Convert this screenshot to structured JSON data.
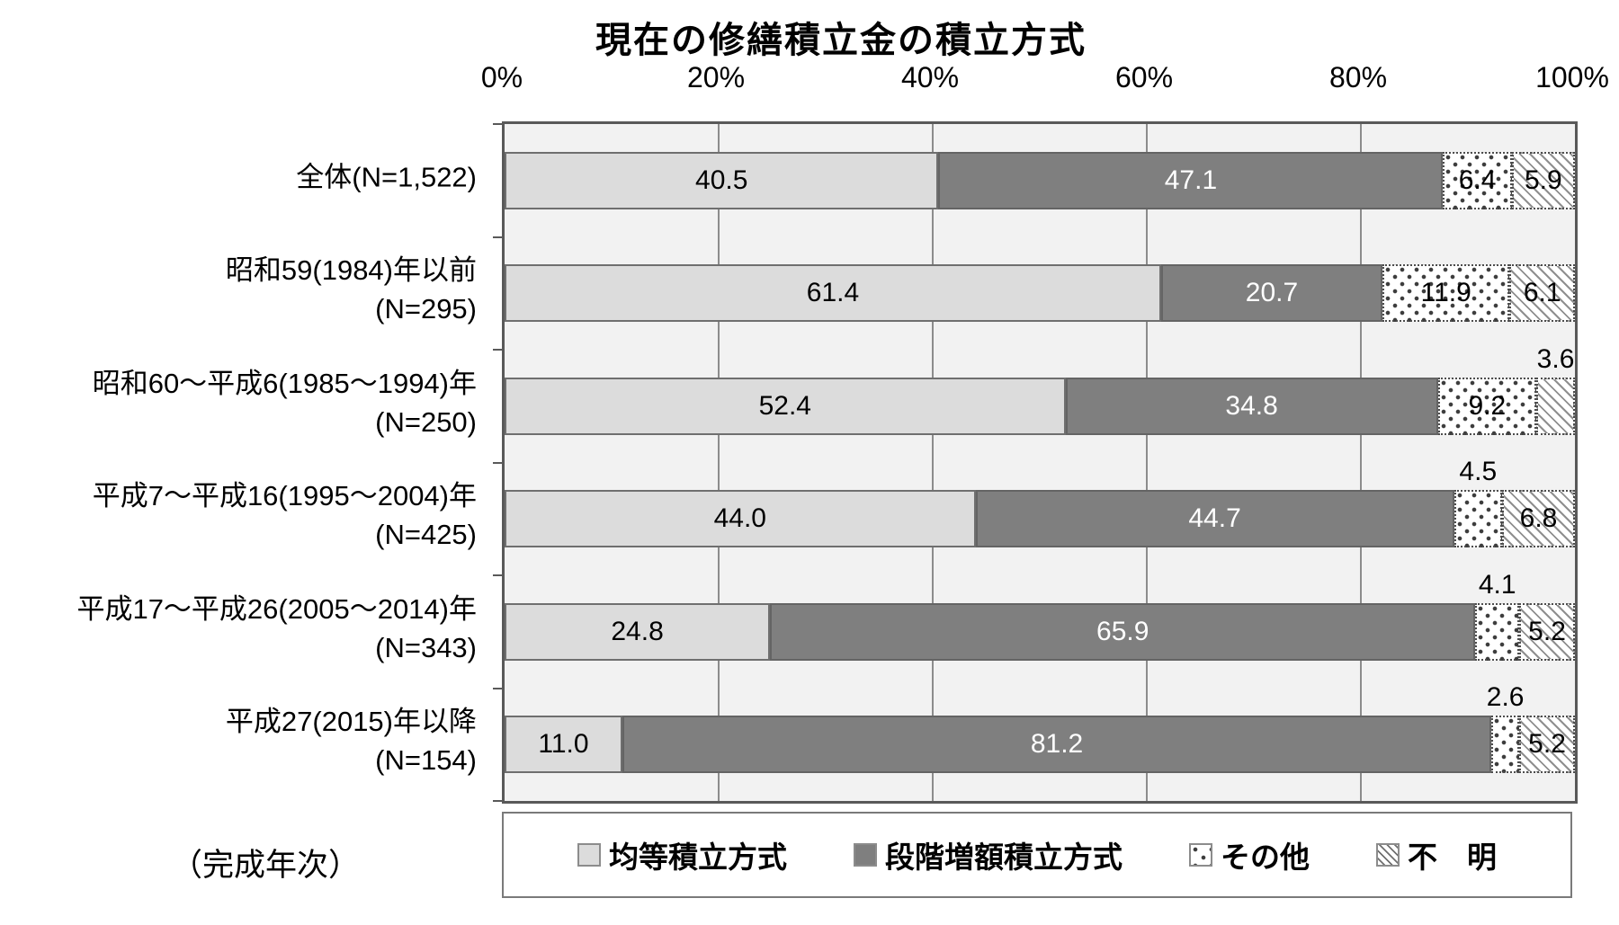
{
  "chart_data": {
    "type": "bar",
    "orientation": "horizontal",
    "stacked": true,
    "title": "現在の修繕積立金の積立方式",
    "footnote": "（完成年次）",
    "x_axis": {
      "range": [
        0,
        100
      ],
      "ticks": [
        "0%",
        "20%",
        "40%",
        "60%",
        "80%",
        "100%"
      ],
      "grid": true
    },
    "categories": [
      {
        "line1": "全体(N=1,522)",
        "line2": ""
      },
      {
        "line1": "昭和59(1984)年以前",
        "line2": "(N=295)"
      },
      {
        "line1": "昭和60～平成6(1985～1994)年",
        "line2": "(N=250)"
      },
      {
        "line1": "平成7～平成16(1995～2004)年",
        "line2": "(N=425)"
      },
      {
        "line1": "平成17～平成26(2005～2014)年",
        "line2": "(N=343)"
      },
      {
        "line1": "平成27(2015)年以降",
        "line2": "(N=154)"
      }
    ],
    "series": [
      {
        "name": "均等積立方式",
        "style": "light-gray",
        "values": [
          40.5,
          61.4,
          52.4,
          44.0,
          24.8,
          11.0
        ]
      },
      {
        "name": "段階増額積立方式",
        "style": "dark-gray",
        "values": [
          47.1,
          20.7,
          34.8,
          44.7,
          65.9,
          81.2
        ]
      },
      {
        "name": "その他",
        "style": "polka-dots",
        "values": [
          6.4,
          11.9,
          9.2,
          4.5,
          4.1,
          2.6
        ]
      },
      {
        "name": "不　明",
        "style": "diagonal-hatch",
        "values": [
          5.9,
          6.1,
          3.6,
          6.8,
          5.2,
          5.2
        ]
      }
    ],
    "above_labels": [
      [
        2,
        3
      ],
      [
        3,
        2
      ],
      [
        4,
        2
      ],
      [
        5,
        2
      ]
    ],
    "legend_position": "bottom",
    "colors": {
      "light_gray": "#dcdcdc",
      "dark_gray": "#7f7f7f",
      "pattern_fg": "#3d3d3d",
      "plot_background": "#f2f2f2",
      "plot_border": "#595959",
      "gridline": "#8c8c8c"
    }
  }
}
